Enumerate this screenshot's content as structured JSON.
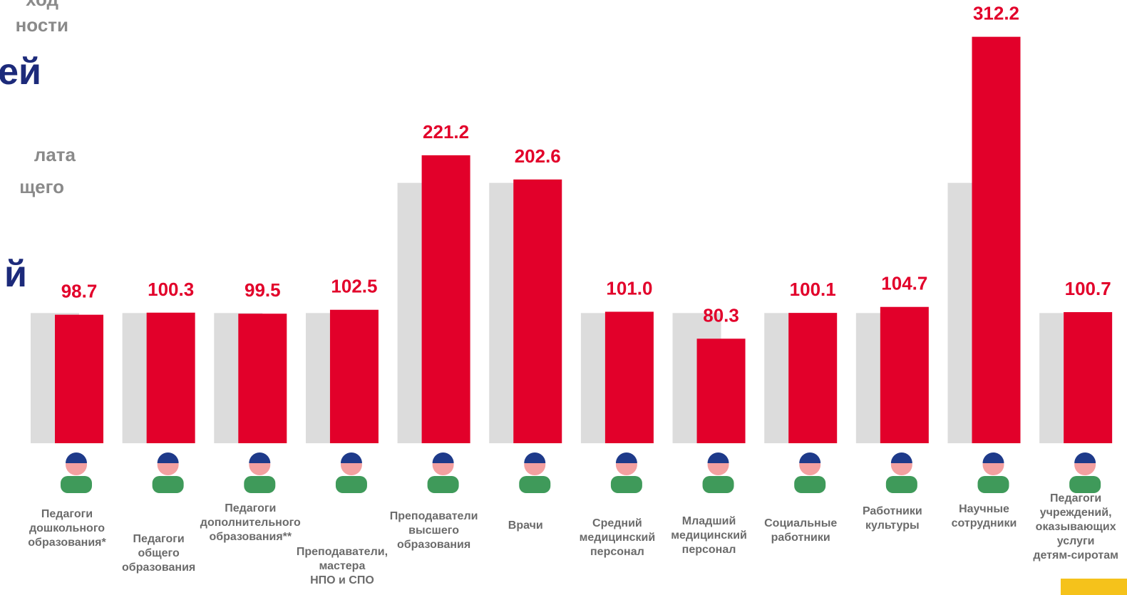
{
  "header_fragments": [
    "ход",
    "ности",
    "ей",
    "лата",
    "щего",
    "й"
  ],
  "chart_data": {
    "type": "bar",
    "categories": [
      "Педагоги\nдошкольного\nобразования*",
      "Педагоги\nобщего\nобразования",
      "Педагоги\nдополнительного\nобразования**",
      "Преподаватели,\nмастера\nНПО и СПО",
      "Преподаватели\nвысшего\nобразования",
      "Врачи",
      "Средний\nмедицинский\nперсонал",
      "Младший\nмедицинский\nперсонал",
      "Социальные\nработники",
      "Работники\nкультуры",
      "Научные\nсотрудники",
      "Педагоги\nучреждений,\nоказывающих\nуслуги\nдетям-сиротам"
    ],
    "series": [
      {
        "color": "#dcdcdc",
        "values": [
          100,
          100,
          100,
          100,
          200,
          200,
          100,
          100,
          100,
          100,
          200,
          100
        ]
      },
      {
        "color": "#e2002a",
        "values": [
          98.7,
          100.3,
          99.5,
          102.5,
          221.2,
          202.6,
          101.0,
          80.3,
          100.1,
          104.7,
          312.2,
          100.7
        ],
        "value_labels": [
          "98.7",
          "100.3",
          "99.5",
          "102.5",
          "221.2",
          "202.6",
          "101.0",
          "80.3",
          "100.1",
          "104.7",
          "312.2",
          "100.7"
        ]
      }
    ],
    "ylim": [
      0,
      338
    ]
  }
}
